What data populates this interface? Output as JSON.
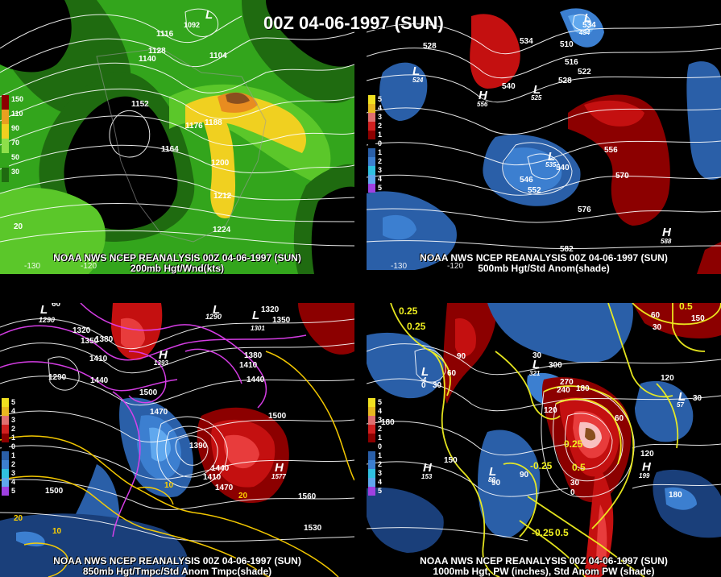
{
  "title": "00Z 04-06-1997 (SUN)",
  "panels": [
    {
      "id": "p200",
      "caption1": "NOAA NWS NCEP REANALYSIS 00Z 04-06-1997 (SUN)",
      "caption2": "200mb Hgt/Wnd(kts)",
      "legend": [
        "150",
        "110",
        "90",
        "70",
        "50",
        "30"
      ],
      "contour_labels": [
        "1116",
        "1092",
        "1128",
        "1140",
        "1104",
        "1152",
        "1176",
        "1188",
        "1164",
        "1200",
        "1212",
        "1224",
        "20"
      ],
      "systems": [
        "L",
        "1082"
      ],
      "lon_labels": [
        "-130",
        "-120"
      ]
    },
    {
      "id": "p500",
      "caption1": "NOAA NWS NCEP REANALYSIS 00Z 04-06-1997 (SUN)",
      "caption2": "500mb Hgt/Std Anom(shade)",
      "legend": [
        "5",
        "4",
        "3",
        "2",
        "1",
        "0",
        "1",
        "2",
        "3",
        "4",
        "5"
      ],
      "contour_labels": [
        "528",
        "534",
        "510",
        "516",
        "522",
        "528",
        "540",
        "556",
        "546",
        "540",
        "552",
        "570",
        "576",
        "582",
        "534"
      ],
      "systems": [
        "L",
        "524",
        "H",
        "556",
        "L",
        "525",
        "L",
        "535",
        "H",
        "588",
        "L",
        "494"
      ],
      "lon_labels": [
        "-130",
        "-120"
      ]
    },
    {
      "id": "p850",
      "caption1": "NOAA NWS NCEP REANALYSIS 00Z 04-06-1997 (SUN)",
      "caption2": "850mb Hgt/Tmpc/Std Anom Tmpc(shade)",
      "legend": [
        "5",
        "4",
        "3",
        "2",
        "1",
        "0",
        "1",
        "2",
        "3",
        "4",
        "5"
      ],
      "contour_labels": [
        "60",
        "1290",
        "1320",
        "1350",
        "1380",
        "1410",
        "1440",
        "1290",
        "1290",
        "1350",
        "1320",
        "1380",
        "1410",
        "1440",
        "1500",
        "1470",
        "1500",
        "1390",
        "1410",
        "1440",
        "1470",
        "1500",
        "1560",
        "1530",
        "20",
        "20",
        "10",
        "10"
      ],
      "systems": [
        "L",
        "1250",
        "L",
        "1286",
        "L",
        "1301",
        "H",
        "1393",
        "H",
        "1577"
      ],
      "lon_labels": []
    },
    {
      "id": "p1000",
      "caption1": "NOAA NWS NCEP REANALYSIS 00Z 04-06-1997 (SUN)",
      "caption2": "1000mb Hgt, PW (inches), Std Anom PW (shade)",
      "legend": [
        "5",
        "4",
        "3",
        "2",
        "1",
        "0",
        "1",
        "2",
        "3",
        "4",
        "5"
      ],
      "contour_labels": [
        "0.25",
        "0.25",
        "0.5",
        "60",
        "30",
        "150",
        "90",
        "60",
        "120",
        "30",
        "0",
        "30",
        "300",
        "270",
        "240",
        "180",
        "120",
        "180",
        "150",
        "60",
        "90",
        "90",
        "30",
        "0",
        "120",
        "30",
        "-0.25",
        "0.5",
        "180",
        "-0.25",
        "0.5",
        "0.25"
      ],
      "systems": [
        "L",
        "57",
        "L",
        "321",
        "H",
        "153",
        "L",
        "80",
        "H",
        "199",
        "L",
        "-4"
      ],
      "lon_labels": []
    }
  ],
  "colors": {
    "wind": [
      "#000000",
      "#1f6b10",
      "#33a51c",
      "#5bc72a",
      "#8ee04a",
      "#f0d020",
      "#e88c20",
      "#8a4f1e"
    ],
    "anom_pos": [
      "#5a0000",
      "#8c0000",
      "#c41010",
      "#e83c3c",
      "#f08080",
      "#f8c0c0"
    ],
    "anom_neg": [
      "#1a3f7a",
      "#2a5fa8",
      "#3c7fd0",
      "#60a8ee",
      "#7a30c0",
      "#9f40e0"
    ],
    "legend_anom": [
      "#f0e020",
      "#e8b820",
      "#e07070",
      "#d02020",
      "#8c0000",
      "#000000",
      "#2a5fa8",
      "#3c7fd0",
      "#30c0e0",
      "#60a8ee",
      "#9f40e0"
    ],
    "legend_wind": [
      "#8c0000",
      "#e8a020",
      "#f0d020",
      "#8ee04a",
      "#33a51c",
      "#1f6b10"
    ],
    "isotherm": "#ffd200",
    "magenta": "#e040f0"
  }
}
